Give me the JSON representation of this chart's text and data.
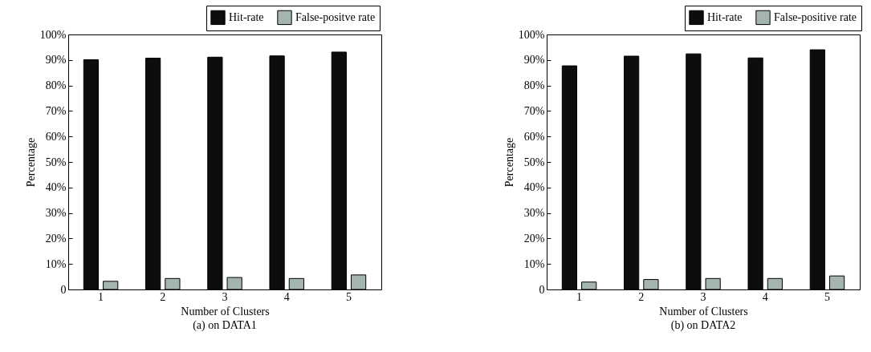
{
  "chart_data": [
    {
      "type": "bar",
      "categories": [
        "1",
        "2",
        "3",
        "4",
        "5"
      ],
      "xlabel": "Number of Clusters",
      "ylabel": "Percentage",
      "annotations": [
        "(a) on DATA1"
      ],
      "series": [
        {
          "name": "Hit-rate",
          "color": "#0d0d0d",
          "values": [
            90.1,
            90.7,
            91.1,
            91.6,
            93.1
          ]
        },
        {
          "name": "False-positve rate",
          "color": "#a4b4ae",
          "values": [
            3.2,
            4.3,
            4.7,
            4.3,
            5.7
          ]
        }
      ],
      "ylim": [
        0,
        100
      ],
      "yticks": [
        0,
        {
          "value": 10,
          "label": "10%"
        },
        {
          "value": 20,
          "label": "20%"
        },
        {
          "value": 30,
          "label": "30%"
        },
        {
          "value": 40,
          "label": "40%"
        },
        {
          "value": 50,
          "label": "50%"
        },
        {
          "value": 60,
          "label": "60%"
        },
        {
          "value": 70,
          "label": "70%"
        },
        {
          "value": 80,
          "label": "80%"
        },
        {
          "value": 90,
          "label": "90%"
        },
        {
          "value": 100,
          "label": "100%"
        }
      ],
      "legend": "top right",
      "grid": false
    },
    {
      "type": "bar",
      "categories": [
        "1",
        "2",
        "3",
        "4",
        "5"
      ],
      "xlabel": "Number of Clusters",
      "ylabel": "Percentage",
      "annotations": [
        "(b) on DATA2"
      ],
      "series": [
        {
          "name": "Hit-rate",
          "color": "#0d0d0d",
          "values": [
            87.7,
            91.5,
            92.4,
            90.8,
            94.0
          ]
        },
        {
          "name": "False-positive rate",
          "color": "#a4b4ae",
          "values": [
            2.9,
            3.9,
            4.3,
            4.3,
            5.3
          ]
        }
      ],
      "ylim": [
        0,
        100
      ],
      "yticks": [
        0,
        {
          "value": 10,
          "label": "10%"
        },
        {
          "value": 20,
          "label": "20%"
        },
        {
          "value": 30,
          "label": "30%"
        },
        {
          "value": 40,
          "label": "40%"
        },
        {
          "value": 50,
          "label": "50%"
        },
        {
          "value": 60,
          "label": "60%"
        },
        {
          "value": 70,
          "label": "70%"
        },
        {
          "value": 80,
          "label": "80%"
        },
        {
          "value": 90,
          "label": "90%"
        },
        {
          "value": 100,
          "label": "100%"
        }
      ],
      "legend": "top right",
      "grid": false
    }
  ]
}
